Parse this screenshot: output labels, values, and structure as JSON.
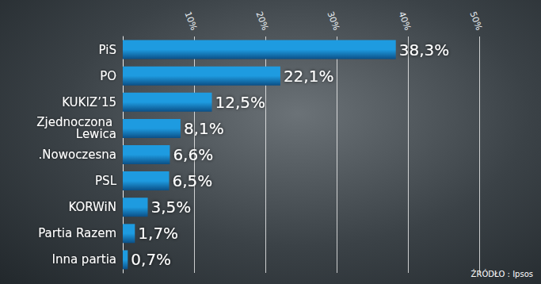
{
  "chart_data": {
    "type": "bar",
    "orientation": "horizontal",
    "categories": [
      "PiS",
      "PO",
      "KUKIZ’15",
      "Zjednoczona Lewica",
      ".Nowoczesna",
      "PSL",
      "KORWiN",
      "Partia Razem",
      "Inna partia"
    ],
    "values": [
      38.3,
      22.1,
      12.5,
      8.1,
      6.6,
      6.5,
      3.5,
      1.7,
      0.7
    ],
    "value_labels": [
      "38,3%",
      "22,1%",
      "12,5%",
      "8,1%",
      "6,6%",
      "6,5%",
      "3,5%",
      "1,7%",
      "0,7%"
    ],
    "data_labels": true,
    "color": "#1e9be0",
    "xlim": [
      0,
      50
    ],
    "xticks": [
      {
        "value": 10,
        "label": "10%"
      },
      {
        "value": 20,
        "label": "20%"
      },
      {
        "value": 30,
        "label": "30%"
      },
      {
        "value": 40,
        "label": "40%"
      },
      {
        "value": 50,
        "label": "50%"
      }
    ],
    "grid": true,
    "annotation": "ŹRÓDŁO : Ipsos"
  }
}
